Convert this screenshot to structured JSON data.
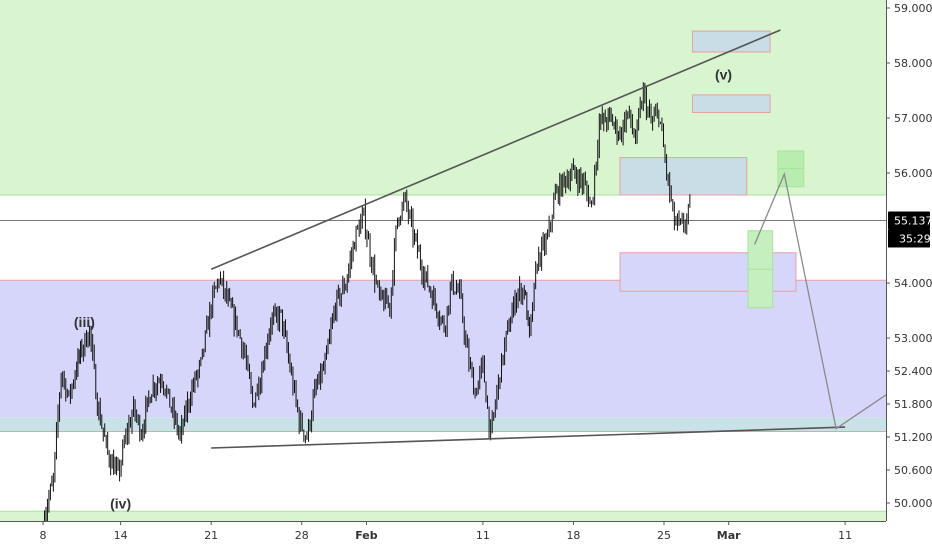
{
  "chart_data": {
    "type": "candlestick",
    "instrument_note": "",
    "y_axis": {
      "position": "right",
      "ylim": [
        49.6,
        59.2
      ],
      "ticks": [
        "59.000",
        "58.000",
        "57.000",
        "56.000",
        "54.000",
        "53.000",
        "52.400",
        "51.800",
        "51.200",
        "50.600",
        "50.000"
      ],
      "tick_values": [
        59.0,
        58.0,
        57.0,
        56.0,
        54.0,
        53.0,
        52.4,
        51.8,
        51.2,
        50.6,
        50.0
      ]
    },
    "x_axis": {
      "ticks": [
        "8",
        "14",
        "21",
        "28",
        "Feb",
        "11",
        "18",
        "25",
        "Mar",
        "11"
      ],
      "bold_ticks": [
        "Feb",
        "Mar"
      ],
      "domain_days": [
        0,
        66
      ],
      "tick_days": [
        0,
        6,
        13,
        20,
        25,
        34,
        41,
        48,
        53,
        62
      ]
    },
    "price_badge": {
      "price": "55.137",
      "countdown": "35:29",
      "value": 55.137,
      "color": "#000000"
    },
    "price_line": {
      "value": 55.137,
      "color": "#777777"
    },
    "zones": [
      {
        "name": "upper-demand-area",
        "from": 55.6,
        "to": 59.2,
        "color": "#d8f5d0"
      },
      {
        "name": "middle-range-area",
        "from": 51.55,
        "to": 54.05,
        "color": "#d6d6fb"
      },
      {
        "name": "support-band",
        "from": 51.3,
        "to": 51.55,
        "color": "#c9e2e8"
      },
      {
        "name": "lower-demand-area",
        "from": 49.6,
        "to": 49.85,
        "color": "#d8f5d0"
      }
    ],
    "zone_lines": [
      {
        "value": 55.6,
        "color": "#a6e39a"
      },
      {
        "value": 54.05,
        "color": "#e8a0a0"
      },
      {
        "value": 51.3,
        "color": "#e8a0a0"
      },
      {
        "value": 49.85,
        "color": "#a6e39a"
      }
    ],
    "boxes": [
      {
        "x1": 50.2,
        "x2": 56.2,
        "y1": 58.2,
        "y2": 58.58,
        "fill": "#c9dde6",
        "stroke": "#e8a0a0"
      },
      {
        "x1": 50.2,
        "x2": 56.2,
        "y1": 57.1,
        "y2": 57.42,
        "fill": "#c9dde6",
        "stroke": "#e8a0a0"
      },
      {
        "x1": 44.6,
        "x2": 54.4,
        "y1": 55.6,
        "y2": 56.28,
        "fill": "#c9dde6",
        "stroke": "#e8a0a0"
      },
      {
        "x1": 44.6,
        "x2": 58.2,
        "y1": 53.85,
        "y2": 54.55,
        "fill": "#d6d6fb",
        "stroke": "#e8a0a0"
      },
      {
        "x1": 56.8,
        "x2": 58.8,
        "y1": 55.75,
        "y2": 56.4,
        "fill": "#b9edb0",
        "stroke": "#a6e39a"
      },
      {
        "x1": 54.5,
        "x2": 56.4,
        "y1": 53.55,
        "y2": 54.95,
        "fill": "#c6efc0",
        "stroke": "#a6e39a"
      }
    ],
    "trendlines": [
      {
        "x1": 13.0,
        "y1": 54.25,
        "x2": 57.0,
        "y2": 58.6,
        "color": "#555555"
      },
      {
        "x1": 13.0,
        "y1": 51.0,
        "x2": 62.0,
        "y2": 51.38,
        "color": "#555555"
      }
    ],
    "projection": [
      {
        "x": 55.0,
        "y": 54.7
      },
      {
        "x": 57.3,
        "y": 55.98
      },
      {
        "x": 61.3,
        "y": 51.35
      },
      {
        "x": 66.0,
        "y": 52.1
      }
    ],
    "wave_labels": [
      {
        "text": "(iii)",
        "x": 3.2,
        "y": 53.2
      },
      {
        "text": "(iv)",
        "x": 6.0,
        "y": 49.9
      },
      {
        "text": "(v)",
        "x": 52.6,
        "y": 57.7
      }
    ],
    "price_path": [
      [
        0,
        49.7
      ],
      [
        0.8,
        50.4
      ],
      [
        1.4,
        52.4
      ],
      [
        2.0,
        51.9
      ],
      [
        2.6,
        52.5
      ],
      [
        3.0,
        52.8
      ],
      [
        3.6,
        53.15
      ],
      [
        4.2,
        51.8
      ],
      [
        5.0,
        50.9
      ],
      [
        5.8,
        50.5
      ],
      [
        6.4,
        51.2
      ],
      [
        7.0,
        51.7
      ],
      [
        7.6,
        51.3
      ],
      [
        8.4,
        52.1
      ],
      [
        9.2,
        52.3
      ],
      [
        9.8,
        51.8
      ],
      [
        10.6,
        51.2
      ],
      [
        11.4,
        52.0
      ],
      [
        12.2,
        52.5
      ],
      [
        13.0,
        53.6
      ],
      [
        13.6,
        54.1
      ],
      [
        14.2,
        53.7
      ],
      [
        15.0,
        53.2
      ],
      [
        15.6,
        52.7
      ],
      [
        16.2,
        51.8
      ],
      [
        16.8,
        52.3
      ],
      [
        17.6,
        53.3
      ],
      [
        18.4,
        53.4
      ],
      [
        19.2,
        52.3
      ],
      [
        19.8,
        51.5
      ],
      [
        20.4,
        51.2
      ],
      [
        21.0,
        52.0
      ],
      [
        21.8,
        52.5
      ],
      [
        22.6,
        53.6
      ],
      [
        23.4,
        54.0
      ],
      [
        24.2,
        54.9
      ],
      [
        24.8,
        55.2
      ],
      [
        25.4,
        54.4
      ],
      [
        26.0,
        53.7
      ],
      [
        26.8,
        53.6
      ],
      [
        27.4,
        55.2
      ],
      [
        28.0,
        55.5
      ],
      [
        28.6,
        54.9
      ],
      [
        29.4,
        54.2
      ],
      [
        30.2,
        53.7
      ],
      [
        31.0,
        53.2
      ],
      [
        31.6,
        54.0
      ],
      [
        32.2,
        53.8
      ],
      [
        32.8,
        52.7
      ],
      [
        33.4,
        52.0
      ],
      [
        34.0,
        52.5
      ],
      [
        34.6,
        51.2
      ],
      [
        35.2,
        52.2
      ],
      [
        35.8,
        53.0
      ],
      [
        36.6,
        53.8
      ],
      [
        37.2,
        53.9
      ],
      [
        37.6,
        53.0
      ],
      [
        38.2,
        54.4
      ],
      [
        39.0,
        54.8
      ],
      [
        39.6,
        55.6
      ],
      [
        40.4,
        55.9
      ],
      [
        41.0,
        56.0
      ],
      [
        41.8,
        55.8
      ],
      [
        42.4,
        55.4
      ],
      [
        43.0,
        56.9
      ],
      [
        43.8,
        57.0
      ],
      [
        44.6,
        56.7
      ],
      [
        45.2,
        57.1
      ],
      [
        45.8,
        56.6
      ],
      [
        46.4,
        57.45
      ],
      [
        47.0,
        56.9
      ],
      [
        47.6,
        57.1
      ],
      [
        48.2,
        56.0
      ],
      [
        48.8,
        55.1
      ],
      [
        49.4,
        55.0
      ],
      [
        50.0,
        55.3
      ]
    ],
    "title": "",
    "xlabel": "",
    "ylabel": "",
    "grid": false,
    "legend": "none"
  }
}
